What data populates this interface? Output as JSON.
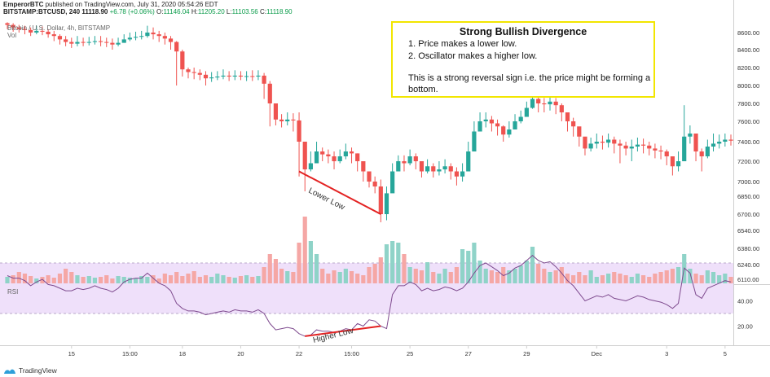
{
  "header": {
    "user": "EmperorBTC",
    "published": "published on TradingView.com, July 31, 2020 05:54:26 EDT",
    "symbol": "BITSTAMP:BTCUSD, 240",
    "last": "11118.90",
    "change": "+6.78 (+0.06%)",
    "o_label": "O:",
    "o": "11146.04",
    "h_label": "H:",
    "h": "11205.20",
    "l_label": "L:",
    "l": "11103.56",
    "c_label": "C:",
    "c": "11118.90"
  },
  "legend": {
    "series": "Bitcoin / U.S. Dollar, 4h, BITSTAMP",
    "volume": "Vol",
    "rsi": "RSI"
  },
  "note": {
    "title": "Strong Bullish Divergence",
    "line1": "1. Price makes a lower low.",
    "line2": "2. Oscillator makes a higher low.",
    "line3": "This is a strong reversal sign i.e. the price might be forming a bottom."
  },
  "annotations": {
    "price": "Lower Low",
    "rsi": "Higher Low"
  },
  "footer": {
    "logo": "TradingView"
  },
  "colors": {
    "up": "#26a69a",
    "down": "#ef5350",
    "volUp": "#8fd3c8",
    "volDown": "#f5a7a5",
    "rsiLine": "#7e4a8e",
    "rsiBand": "#efe0fa",
    "annotation": "#e32222",
    "noteBorder": "#f2e600"
  },
  "chart_data": {
    "type": "candlestick",
    "symbol": "BITSTAMP:BTCUSD",
    "interval": "4h",
    "price_axis": {
      "ticks": [
        6110,
        6240,
        6380,
        6540,
        6700,
        6850,
        7000,
        7200,
        7400,
        7600,
        7800,
        8000,
        8200,
        8400,
        8600
      ],
      "labels": [
        "6110.00",
        "6240.00",
        "6380.00",
        "6540.00",
        "6700.00",
        "6850.00",
        "7000.00",
        "7200.00",
        "7400.00",
        "7600.00",
        "7800.00",
        "8000.00",
        "8200.00",
        "8400.00",
        "8600.00"
      ]
    },
    "rsi_axis": {
      "ticks": [
        20,
        40
      ],
      "labels": [
        "20.00",
        "40.00"
      ],
      "band": [
        30,
        70
      ]
    },
    "x_axis": {
      "labels": [
        "15",
        "15:00",
        "18",
        "20",
        "22",
        "15:00",
        "25",
        "27",
        "29",
        "Dec",
        "3",
        "5"
      ],
      "label_bars": [
        11,
        21,
        30,
        40,
        50,
        59,
        69,
        79,
        89,
        101,
        113,
        123
      ]
    },
    "closes": [
      8690,
      8660,
      8640,
      8630,
      8600,
      8620,
      8610,
      8580,
      8560,
      8520,
      8490,
      8470,
      8490,
      8480,
      8490,
      8500,
      8490,
      8480,
      8460,
      8480,
      8520,
      8540,
      8550,
      8560,
      8600,
      8580,
      8560,
      8530,
      8490,
      8380,
      8180,
      8150,
      8140,
      8120,
      8080,
      8090,
      8100,
      8110,
      8100,
      8110,
      8100,
      8105,
      8100,
      8110,
      8020,
      7800,
      7620,
      7600,
      7620,
      7610,
      7400,
      7120,
      7180,
      7300,
      7270,
      7250,
      7200,
      7250,
      7300,
      7280,
      7200,
      7100,
      7000,
      6950,
      6700,
      6880,
      7100,
      7200,
      7180,
      7250,
      7200,
      7100,
      7150,
      7100,
      7120,
      7150,
      7100,
      7050,
      7100,
      7300,
      7500,
      7600,
      7620,
      7580,
      7550,
      7470,
      7520,
      7600,
      7650,
      7750,
      7850,
      7800,
      7790,
      7820,
      7780,
      7700,
      7600,
      7550,
      7450,
      7330,
      7380,
      7400,
      7390,
      7420,
      7380,
      7360,
      7330,
      7350,
      7370,
      7360,
      7330,
      7310,
      7300,
      7250,
      7150,
      7200,
      7450,
      7480,
      7300,
      7250,
      7350,
      7380,
      7400,
      7420,
      7410
    ],
    "lows": [
      8640,
      8610,
      8600,
      8580,
      8560,
      8580,
      8570,
      8540,
      8500,
      8460,
      8440,
      8420,
      8440,
      8440,
      8450,
      8460,
      8440,
      8430,
      8400,
      8440,
      8480,
      8500,
      8510,
      8520,
      8540,
      8520,
      8490,
      8460,
      8400,
      8000,
      8100,
      8080,
      8070,
      8060,
      8000,
      8040,
      8060,
      8070,
      8050,
      8060,
      8060,
      8050,
      8050,
      8060,
      7850,
      7550,
      7560,
      7540,
      7560,
      7500,
      7050,
      6900,
      7100,
      7180,
      7200,
      7180,
      7120,
      7180,
      7220,
      7180,
      7100,
      7000,
      6940,
      6880,
      6620,
      6640,
      7000,
      7100,
      7100,
      7160,
      7120,
      7040,
      7080,
      7040,
      7060,
      7080,
      7020,
      6960,
      7000,
      7200,
      7400,
      7520,
      7540,
      7500,
      7460,
      7400,
      7440,
      7520,
      7580,
      7660,
      7740,
      7700,
      7700,
      7720,
      7680,
      7600,
      7500,
      7450,
      7350,
      7260,
      7300,
      7330,
      7320,
      7340,
      7280,
      7180,
      7260,
      7200,
      7300,
      7280,
      7260,
      7230,
      7220,
      7160,
      7060,
      7100,
      7360,
      7380,
      7200,
      7100,
      7230,
      7300,
      7330,
      7350,
      7360
    ],
    "highs": [
      8720,
      8710,
      8690,
      8680,
      8660,
      8680,
      8670,
      8640,
      8620,
      8580,
      8560,
      8540,
      8560,
      8540,
      8550,
      8560,
      8560,
      8540,
      8530,
      8540,
      8580,
      8600,
      8610,
      8620,
      8680,
      8660,
      8620,
      8600,
      8560,
      8500,
      8400,
      8200,
      8200,
      8180,
      8160,
      8150,
      8160,
      8180,
      8160,
      8170,
      8160,
      8160,
      8170,
      8170,
      8140,
      8050,
      7700,
      7680,
      7700,
      7690,
      7700,
      7200,
      7300,
      7400,
      7340,
      7320,
      7300,
      7320,
      7380,
      7340,
      7280,
      7180,
      7100,
      7050,
      7020,
      6950,
      7180,
      7260,
      7260,
      7320,
      7280,
      7200,
      7220,
      7180,
      7200,
      7220,
      7180,
      7140,
      7180,
      7400,
      7600,
      7700,
      7700,
      7660,
      7620,
      7560,
      7600,
      7680,
      7720,
      7820,
      7920,
      7880,
      7860,
      7880,
      7860,
      7800,
      7700,
      7640,
      7540,
      7430,
      7440,
      7480,
      7460,
      7480,
      7450,
      7420,
      7400,
      7420,
      7440,
      7430,
      7400,
      7380,
      7360,
      7320,
      7230,
      7300,
      7780,
      7560,
      7380,
      7330,
      7420,
      7480,
      7470,
      7480,
      7470
    ],
    "volume": [
      8,
      10,
      14,
      12,
      9,
      6,
      8,
      10,
      7,
      12,
      18,
      14,
      10,
      8,
      9,
      7,
      8,
      10,
      6,
      9,
      8,
      7,
      6,
      9,
      8,
      10,
      6,
      12,
      10,
      14,
      9,
      12,
      15,
      8,
      10,
      8,
      12,
      10,
      8,
      7,
      9,
      10,
      8,
      9,
      20,
      36,
      30,
      18,
      15,
      14,
      50,
      82,
      52,
      36,
      18,
      12,
      16,
      14,
      18,
      15,
      12,
      10,
      20,
      24,
      32,
      48,
      52,
      50,
      36,
      20,
      18,
      16,
      26,
      14,
      12,
      18,
      14,
      20,
      42,
      40,
      50,
      28,
      18,
      16,
      14,
      20,
      16,
      18,
      22,
      28,
      45,
      24,
      18,
      14,
      16,
      20,
      12,
      10,
      14,
      10,
      16,
      8,
      10,
      12,
      14,
      12,
      10,
      8,
      12,
      10,
      8,
      12,
      14,
      16,
      18,
      20,
      36,
      18,
      12,
      10,
      16,
      14,
      10,
      12,
      8
    ],
    "rsi": [
      60,
      58,
      58,
      56,
      52,
      55,
      57,
      53,
      52,
      50,
      48,
      48,
      50,
      49,
      50,
      52,
      50,
      49,
      47,
      50,
      55,
      57,
      58,
      58,
      62,
      58,
      54,
      52,
      48,
      38,
      34,
      32,
      32,
      31,
      29,
      30,
      31,
      32,
      31,
      33,
      32,
      32,
      31,
      33,
      30,
      22,
      17,
      18,
      19,
      18,
      14,
      12,
      13,
      17,
      16,
      16,
      15,
      16,
      18,
      17,
      22,
      20,
      25,
      24,
      20,
      18,
      45,
      52,
      52,
      55,
      53,
      48,
      50,
      48,
      49,
      51,
      50,
      48,
      50,
      55,
      62,
      68,
      70,
      67,
      64,
      60,
      62,
      66,
      68,
      72,
      76,
      72,
      70,
      71,
      67,
      62,
      56,
      52,
      46,
      40,
      42,
      44,
      43,
      45,
      42,
      41,
      40,
      42,
      44,
      43,
      41,
      40,
      39,
      37,
      34,
      38,
      66,
      62,
      45,
      42,
      50,
      52,
      54,
      56,
      55
    ],
    "divergence": {
      "price_line": {
        "from_bar": 50,
        "from": 7100,
        "to_bar": 64,
        "to": 6700
      },
      "rsi_line": {
        "from_bar": 51,
        "from": 12,
        "to_bar": 64,
        "to": 20
      }
    }
  }
}
